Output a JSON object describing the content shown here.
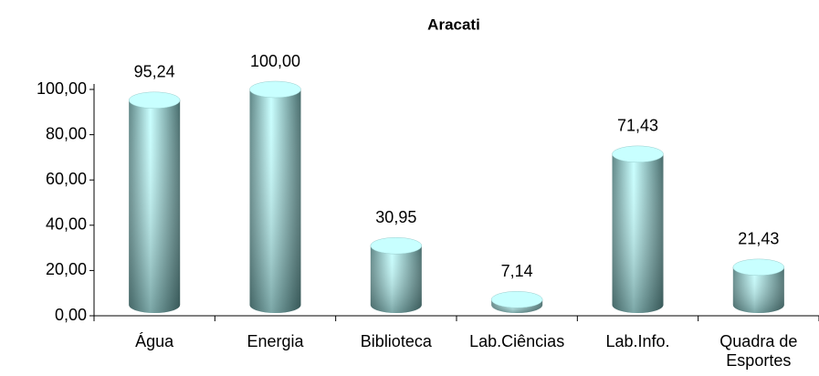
{
  "chart_data": {
    "type": "bar",
    "title": "Aracati",
    "categories": [
      "Água",
      "Energia",
      "Biblioteca",
      "Lab.Ciências",
      "Lab.Info.",
      "Quadra de Esportes"
    ],
    "values": [
      95.24,
      100,
      30.95,
      7.14,
      71.43,
      21.43
    ],
    "value_labels": [
      "95,24",
      "100,00",
      "30,95",
      "7,14",
      "71,43",
      "21,43"
    ],
    "color": "#c8ffff",
    "ylim": [
      0,
      100
    ],
    "yticks": [
      {
        "value": 0,
        "label": "0,00"
      },
      {
        "value": 20,
        "label": "20,00"
      },
      {
        "value": 40,
        "label": "40,00"
      },
      {
        "value": 60,
        "label": "60,00"
      },
      {
        "value": 80,
        "label": "80,00"
      },
      {
        "value": 100,
        "label": "100,00"
      }
    ],
    "grid": false
  }
}
